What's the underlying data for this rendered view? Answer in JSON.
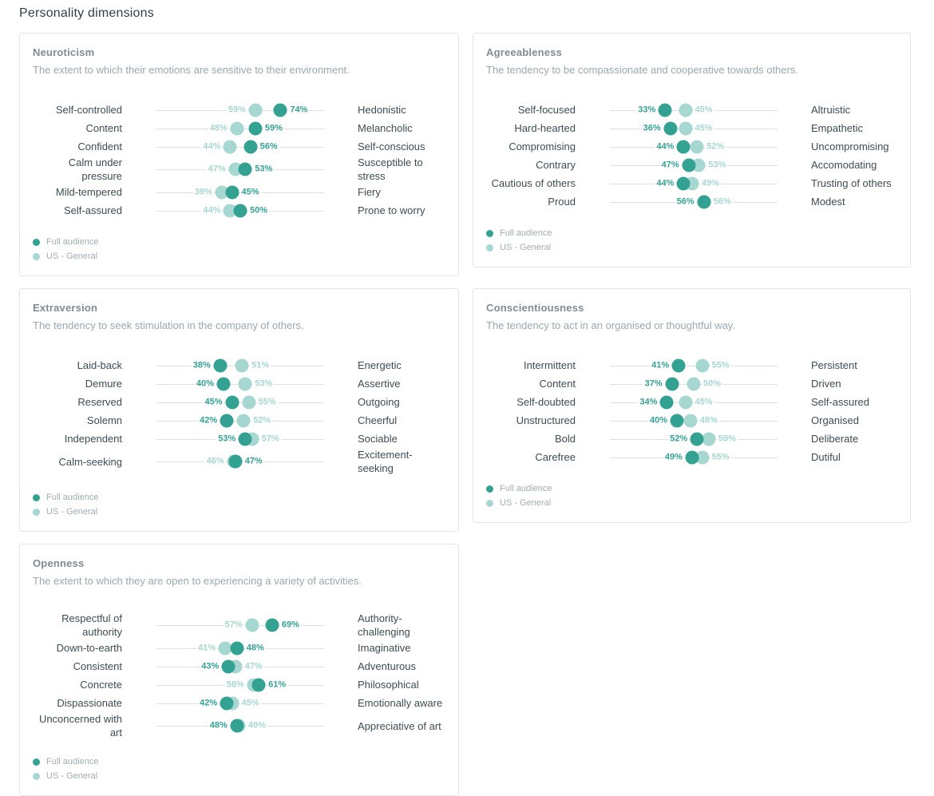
{
  "page": {
    "title": "Personality dimensions"
  },
  "colors": {
    "full_audience": "#33a293",
    "us_general": "#a6d8d1",
    "track_line": "#dbe2e5"
  },
  "legend": [
    {
      "series": "full",
      "label": "Full audience"
    },
    {
      "series": "us",
      "label": "US - General"
    }
  ],
  "chart_data": [
    {
      "type": "scatter",
      "title": "Neuroticism",
      "subtitle": "The extent to which their emotions are sensitive to their environment.",
      "xlim": [
        0,
        100
      ],
      "series_names": [
        "Full audience",
        "US - General"
      ],
      "rows": [
        {
          "left": "Self-controlled",
          "right": "Hedonistic",
          "full_audience": 74,
          "us_general": 59
        },
        {
          "left": "Content",
          "right": "Melancholic",
          "full_audience": 59,
          "us_general": 48
        },
        {
          "left": "Confident",
          "right": "Self-conscious",
          "full_audience": 56,
          "us_general": 44
        },
        {
          "left": "Calm under pressure",
          "right": "Susceptible to stress",
          "full_audience": 53,
          "us_general": 47
        },
        {
          "left": "Mild-tempered",
          "right": "Fiery",
          "full_audience": 45,
          "us_general": 39
        },
        {
          "left": "Self-assured",
          "right": "Prone to worry",
          "full_audience": 50,
          "us_general": 44
        }
      ]
    },
    {
      "type": "scatter",
      "title": "Agreeableness",
      "subtitle": "The tendency to be compassionate and cooperative towards others.",
      "xlim": [
        0,
        100
      ],
      "series_names": [
        "Full audience",
        "US - General"
      ],
      "rows": [
        {
          "left": "Self-focused",
          "right": "Altruistic",
          "full_audience": 33,
          "us_general": 45
        },
        {
          "left": "Hard-hearted",
          "right": "Empathetic",
          "full_audience": 36,
          "us_general": 45
        },
        {
          "left": "Compromising",
          "right": "Uncompromising",
          "full_audience": 44,
          "us_general": 52
        },
        {
          "left": "Contrary",
          "right": "Accomodating",
          "full_audience": 47,
          "us_general": 53
        },
        {
          "left": "Cautious of others",
          "right": "Trusting of others",
          "full_audience": 44,
          "us_general": 49
        },
        {
          "left": "Proud",
          "right": "Modest",
          "full_audience": 56,
          "us_general": 56
        }
      ]
    },
    {
      "type": "scatter",
      "title": "Extraversion",
      "subtitle": "The tendency to seek stimulation in the company of others.",
      "xlim": [
        0,
        100
      ],
      "series_names": [
        "Full audience",
        "US - General"
      ],
      "rows": [
        {
          "left": "Laid-back",
          "right": "Energetic",
          "full_audience": 38,
          "us_general": 51
        },
        {
          "left": "Demure",
          "right": "Assertive",
          "full_audience": 40,
          "us_general": 53
        },
        {
          "left": "Reserved",
          "right": "Outgoing",
          "full_audience": 45,
          "us_general": 55
        },
        {
          "left": "Solemn",
          "right": "Cheerful",
          "full_audience": 42,
          "us_general": 52
        },
        {
          "left": "Independent",
          "right": "Sociable",
          "full_audience": 53,
          "us_general": 57
        },
        {
          "left": "Calm-seeking",
          "right": "Excitement-seeking",
          "full_audience": 47,
          "us_general": 46
        }
      ]
    },
    {
      "type": "scatter",
      "title": "Conscientiousness",
      "subtitle": "The tendency to act in an organised or thoughtful way.",
      "xlim": [
        0,
        100
      ],
      "series_names": [
        "Full audience",
        "US - General"
      ],
      "rows": [
        {
          "left": "Intermittent",
          "right": "Persistent",
          "full_audience": 41,
          "us_general": 55
        },
        {
          "left": "Content",
          "right": "Driven",
          "full_audience": 37,
          "us_general": 50
        },
        {
          "left": "Self-doubted",
          "right": "Self-assured",
          "full_audience": 34,
          "us_general": 45
        },
        {
          "left": "Unstructured",
          "right": "Organised",
          "full_audience": 40,
          "us_general": 48
        },
        {
          "left": "Bold",
          "right": "Deliberate",
          "full_audience": 52,
          "us_general": 59
        },
        {
          "left": "Carefree",
          "right": "Dutiful",
          "full_audience": 49,
          "us_general": 55
        }
      ]
    },
    {
      "type": "scatter",
      "title": "Openness",
      "subtitle": "The extent to which they are open to experiencing a variety of activities.",
      "xlim": [
        0,
        100
      ],
      "series_names": [
        "Full audience",
        "US - General"
      ],
      "rows": [
        {
          "left": "Respectful of authority",
          "right": "Authority-challenging",
          "full_audience": 69,
          "us_general": 57
        },
        {
          "left": "Down-to-earth",
          "right": "Imaginative",
          "full_audience": 48,
          "us_general": 41
        },
        {
          "left": "Consistent",
          "right": "Adventurous",
          "full_audience": 43,
          "us_general": 47
        },
        {
          "left": "Concrete",
          "right": "Philosophical",
          "full_audience": 61,
          "us_general": 58
        },
        {
          "left": "Dispassionate",
          "right": "Emotionally aware",
          "full_audience": 42,
          "us_general": 45
        },
        {
          "left": "Unconcerned with art",
          "right": "Appreciative of art",
          "full_audience": 48,
          "us_general": 49
        }
      ]
    }
  ]
}
